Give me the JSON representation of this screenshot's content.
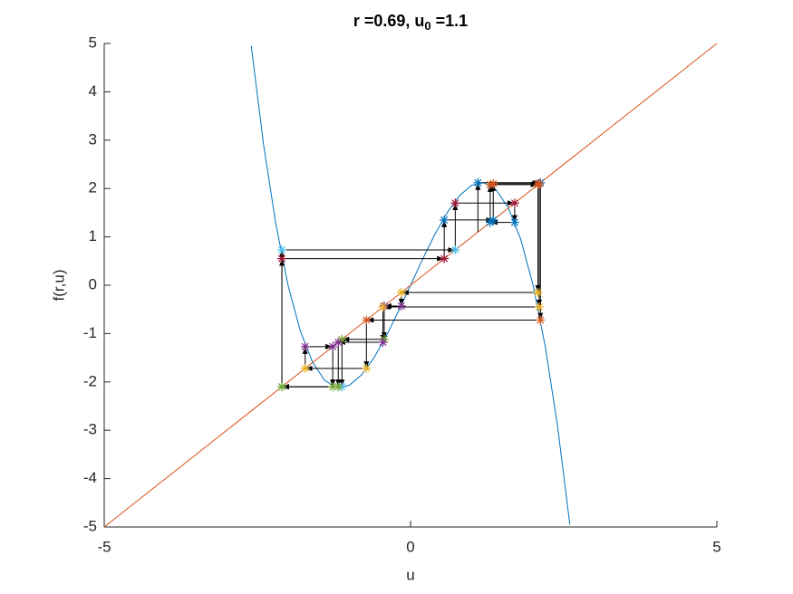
{
  "chart_data": {
    "type": "cobweb",
    "title": {
      "text": "r =0.69, u",
      "subscript": "0",
      "suffix": " =1.1"
    },
    "xlabel": "u",
    "ylabel": "f(r,u)",
    "xlim": [
      -5,
      5
    ],
    "ylim": [
      -5,
      5
    ],
    "xticks": [
      -5,
      0,
      5
    ],
    "yticks": [
      -5,
      -4,
      -3,
      -2,
      -1,
      0,
      1,
      2,
      3,
      4,
      5
    ],
    "series": [
      {
        "color": "#0072bd",
        "x": [
          -2.6,
          -2.4,
          -2.2,
          -2.0,
          -1.8,
          -1.6,
          -1.4,
          -1.2,
          -1.0,
          -0.8,
          -0.6,
          -0.4,
          -0.2,
          0,
          0.2,
          0.4,
          0.6,
          0.8,
          1.0,
          1.2,
          1.4,
          1.6,
          1.8,
          2.0,
          2.2,
          2.4,
          2.6
        ],
        "values": [
          4.95,
          2.915,
          1.275,
          0,
          -0.944,
          -1.59,
          -1.971,
          -2.12,
          -2.07,
          -1.855,
          -1.507,
          -1.06,
          -0.546,
          0,
          0.546,
          1.06,
          1.507,
          1.855,
          2.07,
          2.12,
          1.971,
          1.59,
          0.944,
          0,
          -1.275,
          -2.915,
          -4.95
        ]
      },
      {
        "color": "#d95319",
        "x": [
          -5,
          5
        ],
        "values": [
          -5,
          5
        ]
      }
    ],
    "orbit": {
      "values": [
        1.1,
        2.12,
        -0.72,
        -1.72,
        -1.27,
        -2.1,
        0.73,
        1.7,
        1.3,
        2.08,
        -0.15,
        -0.43,
        -1.12,
        -2.1,
        0.55,
        1.35,
        2.1,
        -0.45,
        -1.18,
        -2.1
      ],
      "colors": [
        "#0072bd",
        "#d95319",
        "#edb120",
        "#7e2f8e",
        "#77ac30",
        "#4dbeee",
        "#a2142f"
      ],
      "arrow_color": "#000000"
    }
  }
}
